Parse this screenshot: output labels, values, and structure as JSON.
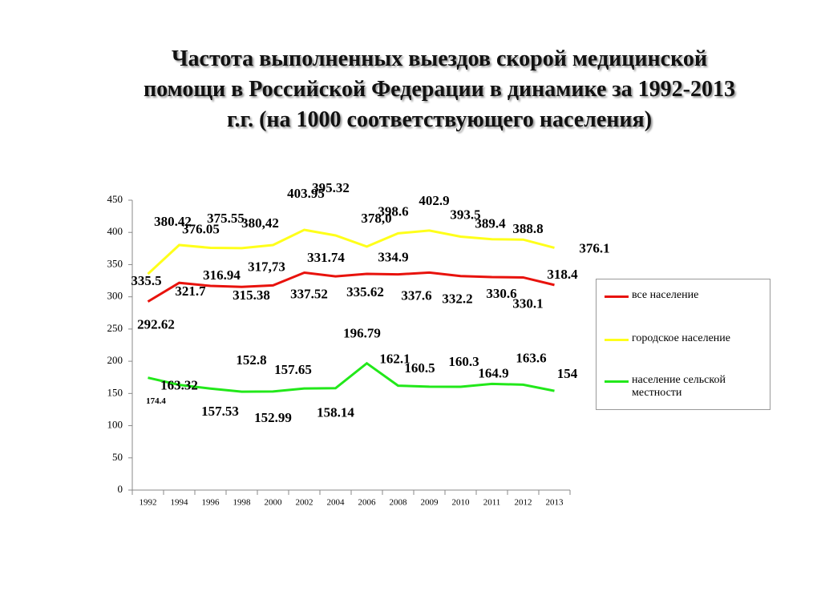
{
  "chart_data": {
    "type": "line",
    "title": "Частота выполненных выездов скорой медицинской помощи в Российской Федерации в динамике за 1992-2013 г.г.  (на 1000 соответствующего населения)",
    "categories": [
      "1992",
      "1994",
      "1996",
      "1998",
      "2000",
      "2002",
      "2004",
      "2006",
      "2008",
      "2009",
      "2010",
      "2011",
      "2012",
      "2013"
    ],
    "ylim": [
      0,
      450
    ],
    "yticks": [
      0,
      50,
      100,
      150,
      200,
      250,
      300,
      350,
      400,
      450
    ],
    "legend": "right",
    "series": [
      {
        "name": "все население",
        "color": "#e8120c",
        "values": [
          292.62,
          321.7,
          316.94,
          315.38,
          317.73,
          337.52,
          331.74,
          335.62,
          334.9,
          337.6,
          332.2,
          330.6,
          330.1,
          318.4
        ],
        "value_labels": [
          "292.62",
          "321.7",
          "316.94",
          "315.38",
          "317,73",
          "337.52",
          "331.74",
          "335.62",
          "334.9",
          "337.6",
          "332.2",
          "330.6",
          "330.1",
          "318.4"
        ]
      },
      {
        "name": "городское население",
        "color": "#ffff1a",
        "values": [
          335.5,
          380.42,
          376.05,
          375.55,
          380.42,
          403.95,
          395.32,
          378.0,
          398.6,
          402.9,
          393.5,
          389.4,
          388.8,
          376.1
        ],
        "value_labels": [
          "335.5",
          "380.42",
          "376.05",
          "375.55",
          "380,42",
          "403.95",
          "395.32",
          "378,0",
          "398.6",
          "402.9",
          "393.5",
          "389.4",
          "388.8",
          "376.1"
        ]
      },
      {
        "name": "население сельской местности",
        "color": "#22e81a",
        "values": [
          174.4,
          163.32,
          157.53,
          152.8,
          152.99,
          157.65,
          158.14,
          196.79,
          162.1,
          160.5,
          160.3,
          164.9,
          163.6,
          154
        ],
        "value_labels": [
          "174.4",
          "163.32",
          "157.53",
          "152.8",
          "152.99",
          "157.65",
          "158.14",
          "196.79",
          "162.1",
          "160.5",
          "160.3",
          "164.9",
          "163.6",
          "154"
        ]
      }
    ]
  }
}
